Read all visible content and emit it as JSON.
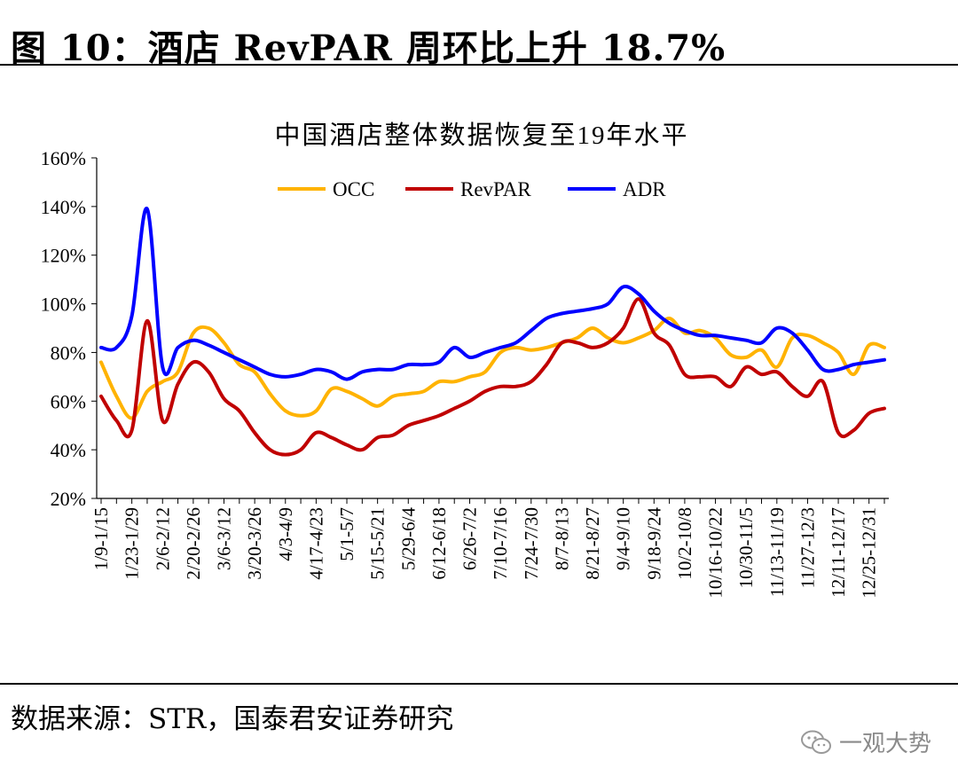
{
  "figure": {
    "title": "图 10：酒店 RevPAR 周环比上升 18.7%",
    "source": "数据来源：STR，国泰君安证券研究",
    "watermark": "一观大势",
    "watermark_icon": "wechat-icon"
  },
  "chart_data": {
    "type": "line",
    "title": "中国酒店整体数据恢复至19年水平",
    "xlabel": "",
    "ylabel": "",
    "ylim": [
      20,
      160
    ],
    "yticks": [
      20,
      40,
      60,
      80,
      100,
      120,
      140,
      160
    ],
    "ytick_labels": [
      "20%",
      "40%",
      "60%",
      "80%",
      "100%",
      "120%",
      "140%",
      "160%"
    ],
    "grid": false,
    "legend_position": "top-center",
    "x_tick_labels": [
      "1/9-1/15",
      "1/23-1/29",
      "2/6-2/12",
      "2/20-2/26",
      "3/6-3/12",
      "3/20-3/26",
      "4/3-4/9",
      "4/17-4/23",
      "5/1-5/7",
      "5/15-5/21",
      "5/29-6/4",
      "6/12-6/18",
      "6/26-7/2",
      "7/10-7/16",
      "7/24-7/30",
      "8/7-8/13",
      "8/21-8/27",
      "9/4-9/10",
      "9/18-9/24",
      "10/2-10/8",
      "10/16-10/22",
      "10/30-11/5",
      "11/13-11/19",
      "11/27-12/3",
      "12/11-12/17",
      "12/25-12/31"
    ],
    "x_tick_every": 2,
    "x_count": 52,
    "series": [
      {
        "name": "OCC",
        "color": "#FFB300",
        "values": [
          76,
          62,
          53,
          64,
          68,
          72,
          88,
          90,
          84,
          75,
          72,
          63,
          56,
          54,
          56,
          65,
          64,
          61,
          58,
          62,
          63,
          64,
          68,
          68,
          70,
          72,
          80,
          82,
          81,
          82,
          84,
          86,
          90,
          86,
          84,
          86,
          89,
          94,
          88,
          89,
          86,
          79,
          78,
          81,
          74,
          86,
          87,
          84,
          80,
          71,
          83,
          82
        ]
      },
      {
        "name": "RevPAR",
        "color": "#C00000",
        "values": [
          62,
          52,
          48,
          93,
          52,
          67,
          76,
          72,
          61,
          56,
          47,
          40,
          38,
          40,
          47,
          45,
          42,
          40,
          45,
          46,
          50,
          52,
          54,
          57,
          60,
          64,
          66,
          66,
          68,
          75,
          84,
          84,
          82,
          84,
          90,
          102,
          88,
          83,
          71,
          70,
          70,
          66,
          74,
          71,
          72,
          66,
          62,
          68,
          47,
          48,
          55,
          57
        ]
      },
      {
        "name": "ADR",
        "color": "#0000FF",
        "values": [
          82,
          82,
          95,
          139,
          74,
          82,
          85,
          83,
          80,
          77,
          74,
          71,
          70,
          71,
          73,
          72,
          69,
          72,
          73,
          73,
          75,
          75,
          76,
          82,
          78,
          80,
          82,
          84,
          89,
          94,
          96,
          97,
          98,
          100,
          107,
          104,
          97,
          92,
          89,
          87,
          87,
          86,
          85,
          84,
          90,
          88,
          81,
          73,
          73,
          75,
          76,
          77
        ]
      }
    ],
    "annotations": []
  }
}
